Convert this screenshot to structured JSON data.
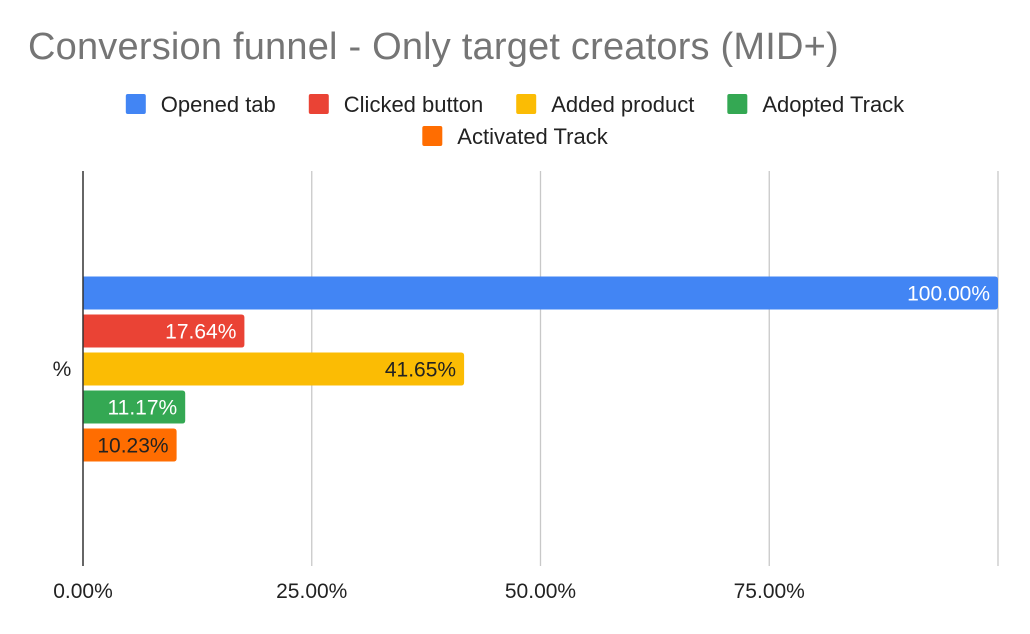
{
  "chart_data": {
    "type": "bar",
    "orientation": "horizontal",
    "title": "Conversion funnel - Only target creators (MID+)",
    "categories": [
      "%"
    ],
    "series": [
      {
        "name": "Opened tab",
        "values": [
          100.0
        ],
        "label": "100.00%",
        "color": "#4285F4",
        "label_color": "#ffffff"
      },
      {
        "name": "Clicked button",
        "values": [
          17.64
        ],
        "label": "17.64%",
        "color": "#EA4335",
        "label_color": "#ffffff"
      },
      {
        "name": "Added product",
        "values": [
          41.65
        ],
        "label": "41.65%",
        "color": "#FBBC04",
        "label_color": "#222222"
      },
      {
        "name": "Adopted Track",
        "values": [
          11.17
        ],
        "label": "11.17%",
        "color": "#34A853",
        "label_color": "#ffffff"
      },
      {
        "name": "Activated Track",
        "values": [
          10.23
        ],
        "label": "10.23%",
        "color": "#FF6D01",
        "label_color": "#222222"
      }
    ],
    "xlim": [
      0,
      100
    ],
    "x_ticks": [
      0,
      25,
      50,
      75
    ],
    "x_tick_labels": [
      "0.00%",
      "25.00%",
      "50.00%",
      "75.00%"
    ],
    "xlabel": "",
    "ylabel": "",
    "grid": true,
    "legend_position": "top"
  }
}
